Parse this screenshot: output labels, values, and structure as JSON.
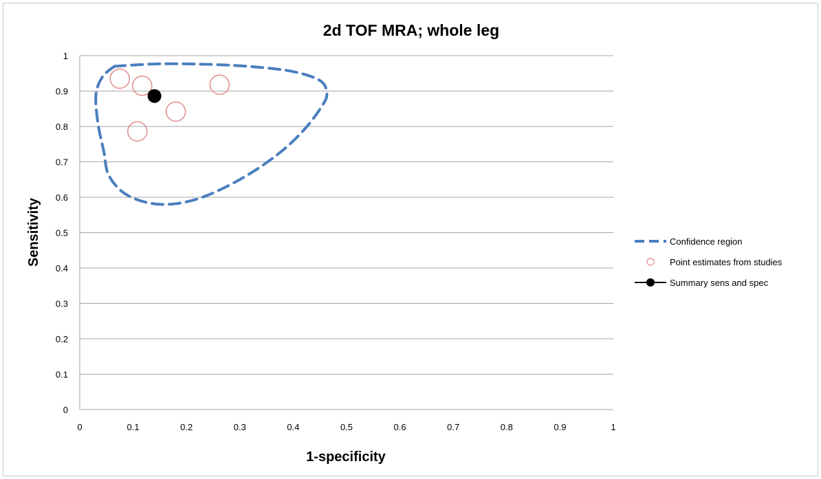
{
  "chart_data": {
    "type": "scatter",
    "title": "2d TOF MRA; whole leg",
    "xlabel": "1-specificity",
    "ylabel": "Sensitivity",
    "xlim": [
      0,
      1
    ],
    "ylim": [
      0,
      1
    ],
    "xticks": [
      "0",
      "0.1",
      "0.2",
      "0.3",
      "0.4",
      "0.5",
      "0.6",
      "0.7",
      "0.8",
      "0.9",
      "1"
    ],
    "yticks": [
      "0",
      "0.1",
      "0.2",
      "0.3",
      "0.4",
      "0.5",
      "0.6",
      "0.7",
      "0.8",
      "0.9",
      "1"
    ],
    "grid": "horizontal",
    "legend_position": "right",
    "series": [
      {
        "name": "Confidence region",
        "style": "dashed-line",
        "color": "#4a7ebf",
        "points": [
          [
            0.065,
            0.97
          ],
          [
            0.15,
            0.977
          ],
          [
            0.25,
            0.975
          ],
          [
            0.33,
            0.968
          ],
          [
            0.4,
            0.955
          ],
          [
            0.45,
            0.93
          ],
          [
            0.463,
            0.895
          ],
          [
            0.455,
            0.86
          ],
          [
            0.42,
            0.79
          ],
          [
            0.37,
            0.72
          ],
          [
            0.3,
            0.65
          ],
          [
            0.22,
            0.595
          ],
          [
            0.15,
            0.58
          ],
          [
            0.09,
            0.605
          ],
          [
            0.055,
            0.66
          ],
          [
            0.045,
            0.73
          ],
          [
            0.035,
            0.8
          ],
          [
            0.03,
            0.87
          ],
          [
            0.033,
            0.91
          ],
          [
            0.045,
            0.945
          ],
          [
            0.065,
            0.97
          ]
        ]
      },
      {
        "name": "Point estimates from studies",
        "style": "open-circle",
        "color": "#e08c8c",
        "points": [
          [
            0.075,
            0.935
          ],
          [
            0.117,
            0.915
          ],
          [
            0.262,
            0.918
          ],
          [
            0.18,
            0.842
          ],
          [
            0.108,
            0.786
          ]
        ]
      },
      {
        "name": "Summary sens and spec",
        "style": "filled-circle",
        "color": "#000000",
        "points": [
          [
            0.14,
            0.886
          ]
        ]
      }
    ]
  }
}
